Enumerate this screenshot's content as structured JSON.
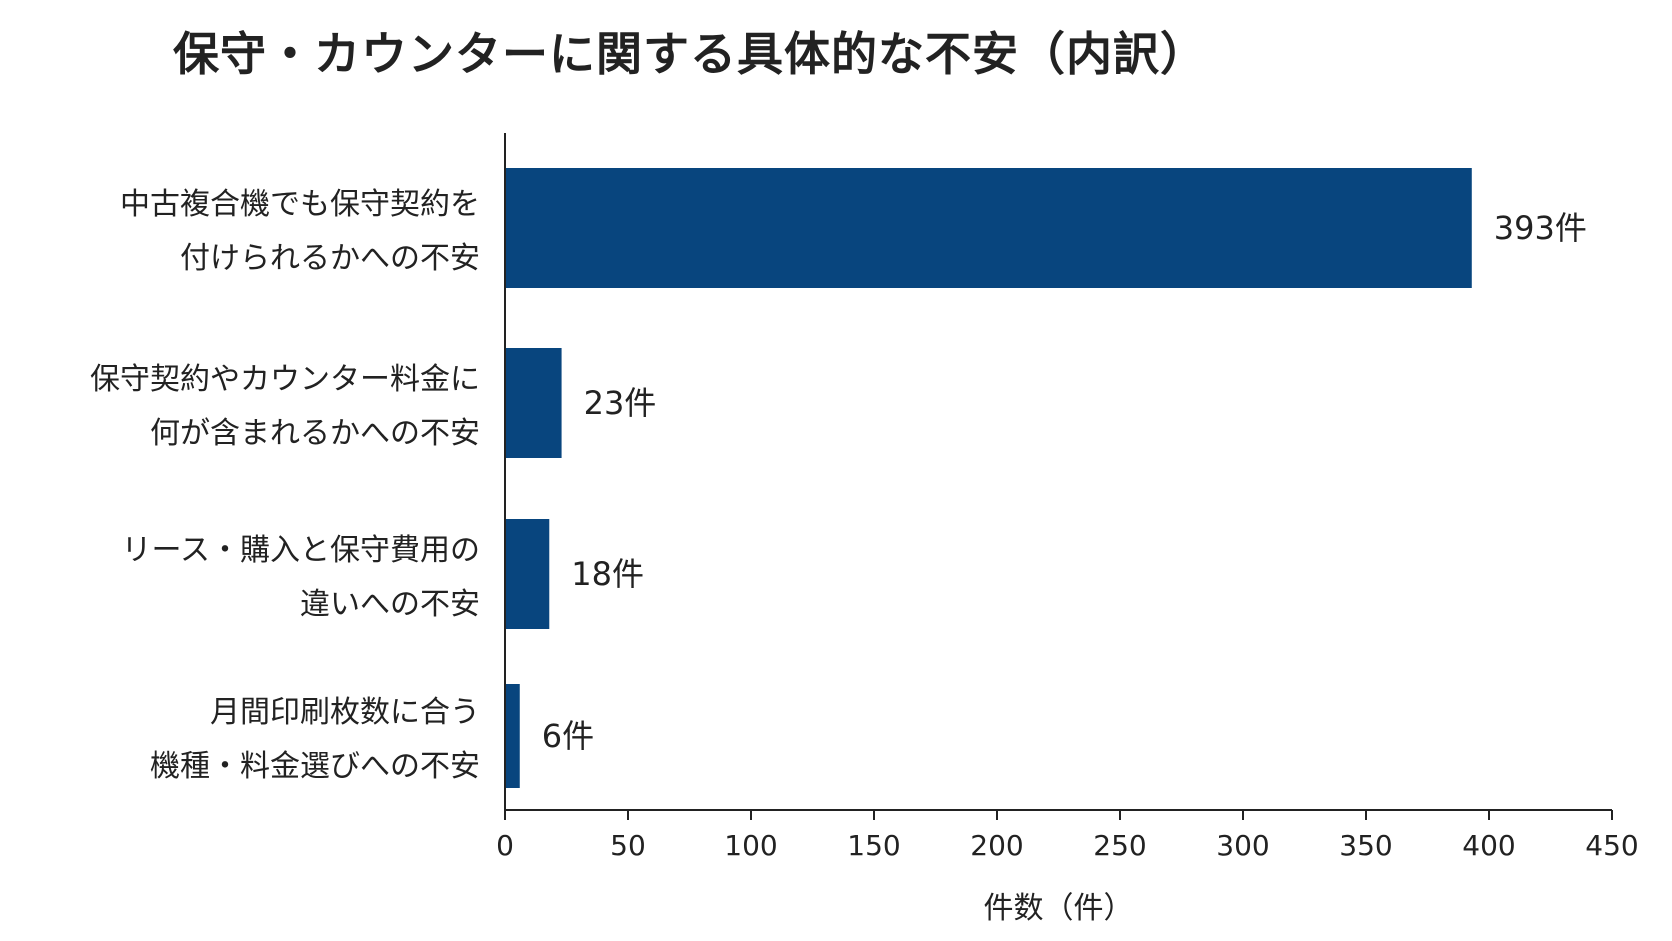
{
  "chart_data": {
    "type": "bar",
    "orientation": "horizontal",
    "title": "保守・カウンターに関する具体的な不安（内訳）",
    "xlabel": "件数（件）",
    "ylabel": "",
    "xlim": [
      0,
      450
    ],
    "xticks": [
      0,
      50,
      100,
      150,
      200,
      250,
      300,
      350,
      400,
      450
    ],
    "grid": false,
    "bar_color": "#08457e",
    "categories": [
      [
        "中古複合機でも保守契約を",
        "付けられるかへの不安"
      ],
      [
        "保守契約やカウンター料金に",
        "何が含まれるかへの不安"
      ],
      [
        "リース・購入と保守費用の",
        "違いへの不安"
      ],
      [
        "月間印刷枚数に合う",
        "機種・料金選びへの不安"
      ]
    ],
    "values": [
      393,
      23,
      18,
      6
    ],
    "value_labels": [
      "393件",
      "23件",
      "18件",
      "6件"
    ]
  }
}
